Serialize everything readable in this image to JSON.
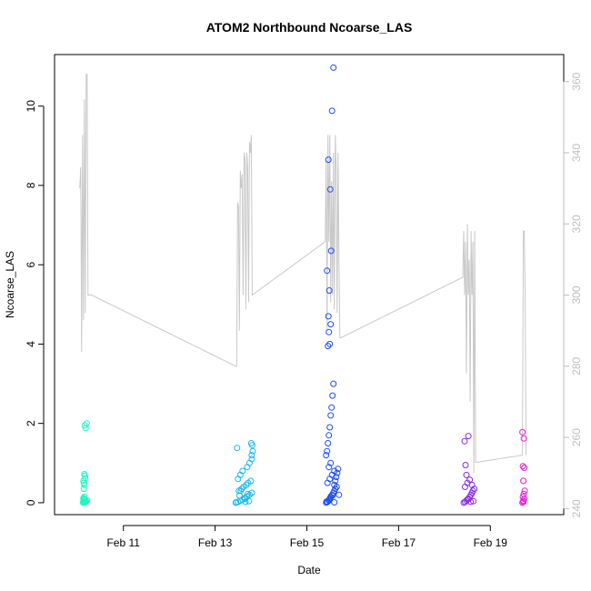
{
  "chart_data": {
    "type": "scatter",
    "title": "ATOM2 Northbound Ncoarse_LAS",
    "xlabel": "Date",
    "ylabel": "Ncoarse_LAS",
    "x_ticks": [
      "Feb 11",
      "Feb 13",
      "Feb 15",
      "Feb 17",
      "Feb 19"
    ],
    "x_tick_values": [
      11,
      13,
      15,
      17,
      19
    ],
    "xlim": [
      9.5,
      20.6
    ],
    "y_ticks": [
      0,
      2,
      4,
      6,
      8,
      10
    ],
    "ylim": [
      -0.3,
      11.3
    ],
    "y2_ticks": [
      240,
      260,
      280,
      300,
      320,
      340,
      360
    ],
    "y2lim": [
      238.3,
      367.6
    ],
    "grid": false,
    "colors": {
      "line": "#c8c8c8",
      "series_1": "#22f5c0",
      "series_2": "#19b8ea",
      "series_3": "#1f4ef0",
      "series_4": "#8a2be2",
      "series_5": "#e61ad6"
    },
    "series": [
      {
        "x": [
          10.12,
          10.14,
          10.13,
          10.15,
          10.16,
          10.13,
          10.17,
          10.15,
          10.14,
          10.16,
          10.18,
          10.14,
          10.15,
          10.13,
          10.17,
          10.16,
          10.15,
          10.14,
          10.18,
          10.16,
          10.2,
          10.21,
          10.13,
          10.15,
          10.19
        ],
        "y": [
          0,
          0.02,
          0.05,
          0.01,
          0.08,
          0.12,
          0.03,
          0.15,
          0.1,
          0.02,
          0.04,
          0.35,
          0.45,
          0.55,
          0.62,
          0.68,
          0.72,
          0.5,
          1.88,
          1.95,
          2.0,
          0.06,
          0.09,
          0.01,
          0.03
        ]
      },
      {
        "x": [
          13.45,
          13.5,
          13.55,
          13.6,
          13.65,
          13.7,
          13.75,
          13.8,
          13.52,
          13.58,
          13.62,
          13.68,
          13.72,
          13.78,
          13.5,
          13.55,
          13.6,
          13.7,
          13.75,
          13.8,
          13.8,
          13.82,
          13.79,
          13.81,
          13.56,
          13.48,
          13.66,
          13.74,
          13.63,
          13.53,
          13.46,
          13.71
        ],
        "y": [
          0,
          0.02,
          0.05,
          0.08,
          0.1,
          0.15,
          0.2,
          0.25,
          0.3,
          0.35,
          0.4,
          0.45,
          0.5,
          0.55,
          0.6,
          0.7,
          0.8,
          0.9,
          1.0,
          1.1,
          1.2,
          1.3,
          1.5,
          1.45,
          0.3,
          1.38,
          0.02,
          0.04,
          0.12,
          0.18,
          0.01,
          0.22
        ]
      },
      {
        "x": [
          15.42,
          15.45,
          15.48,
          15.5,
          15.52,
          15.55,
          15.58,
          15.6,
          15.62,
          15.65,
          15.45,
          15.5,
          15.55,
          15.6,
          15.48,
          15.52,
          15.42,
          15.44,
          15.46,
          15.48,
          15.5,
          15.52,
          15.54,
          15.56,
          15.58,
          15.6,
          15.62,
          15.64,
          15.66,
          15.68,
          15.7,
          15.46,
          15.5,
          15.48,
          15.52,
          15.47,
          15.49,
          15.44,
          15.53,
          15.51,
          15.47,
          15.55,
          15.58,
          15.6,
          15.43,
          15.49,
          15.51,
          15.56
        ],
        "y": [
          0,
          0.02,
          0.05,
          0.1,
          0.15,
          0.2,
          0.25,
          0.3,
          0.35,
          0.4,
          0.5,
          0.6,
          0.7,
          0.8,
          0.9,
          1.0,
          1.2,
          1.3,
          1.5,
          1.7,
          1.9,
          2.2,
          2.4,
          2.7,
          3.0,
          0.45,
          0.55,
          0.65,
          0.75,
          0.85,
          0.2,
          3.95,
          4.0,
          4.3,
          4.5,
          4.7,
          5.35,
          5.85,
          6.35,
          7.9,
          8.65,
          9.88,
          10.97,
          0.01,
          0.03,
          0.07,
          0.12,
          0.18
        ]
      },
      {
        "x": [
          18.42,
          18.45,
          18.48,
          18.5,
          18.52,
          18.55,
          18.58,
          18.6,
          18.62,
          18.65,
          18.45,
          18.5,
          18.55,
          18.6,
          18.48,
          18.46,
          18.44,
          18.52,
          18.57,
          18.63
        ],
        "y": [
          0,
          0.02,
          0.05,
          0.08,
          0.1,
          0.15,
          0.2,
          0.25,
          0.3,
          0.35,
          0.4,
          0.5,
          0.58,
          0.45,
          0.7,
          0.95,
          1.55,
          1.68,
          0.02,
          0.04
        ]
      },
      {
        "x": [
          19.7,
          19.72,
          19.74,
          19.71,
          19.73,
          19.75,
          19.72,
          19.74,
          19.71,
          19.73,
          19.7,
          19.72
        ],
        "y": [
          0,
          0.05,
          0.1,
          0.15,
          0.22,
          0.3,
          0.55,
          0.88,
          0.92,
          1.62,
          1.78,
          0.02
        ]
      }
    ],
    "line": {
      "x": [
        10.05,
        10.07,
        10.09,
        10.11,
        10.13,
        10.15,
        10.17,
        10.19,
        10.21,
        10.23,
        10.25,
        10.27,
        10.29,
        10.31,
        13.45,
        13.47,
        13.49,
        13.51,
        13.53,
        13.55,
        13.57,
        13.59,
        13.61,
        13.63,
        13.65,
        13.67,
        13.69,
        13.71,
        13.73,
        13.75,
        13.77,
        13.79,
        13.81,
        15.4,
        15.42,
        15.44,
        15.46,
        15.48,
        15.5,
        15.52,
        15.54,
        15.56,
        15.58,
        15.6,
        15.62,
        15.64,
        15.66,
        15.68,
        15.7,
        15.72,
        15.74,
        18.4,
        18.42,
        18.44,
        18.46,
        18.48,
        18.5,
        18.52,
        18.54,
        18.56,
        18.58,
        18.6,
        18.62,
        18.64,
        18.66,
        18.68,
        18.7,
        19.7,
        19.72,
        19.74,
        19.76,
        19.78
      ],
      "y2": [
        330,
        336,
        284,
        345,
        293,
        355,
        295,
        362,
        362,
        300,
        300,
        300,
        300,
        300,
        280,
        280,
        326,
        325,
        290,
        335,
        330,
        334,
        300,
        340,
        338,
        296,
        340,
        336,
        298,
        343,
        340,
        345,
        300,
        315,
        338,
        290,
        345,
        315,
        345,
        298,
        332,
        300,
        340,
        296,
        345,
        335,
        295,
        340,
        310,
        288,
        288,
        305,
        318,
        300,
        315,
        278,
        320,
        300,
        310,
        270,
        318,
        300,
        315,
        250,
        318,
        253,
        253,
        255,
        318,
        318,
        300,
        255
      ]
    }
  }
}
